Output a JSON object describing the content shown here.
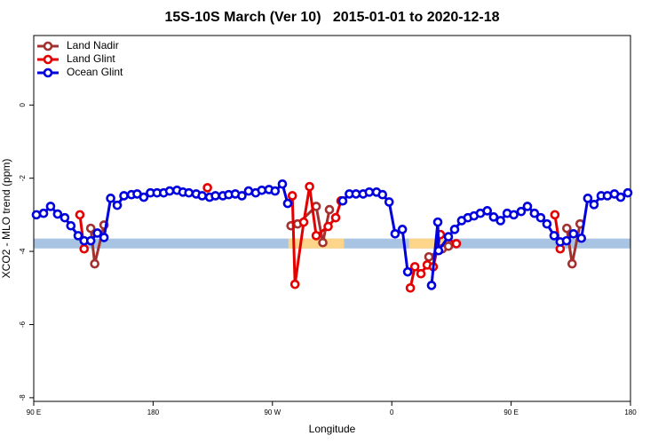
{
  "chart_data": {
    "type": "line",
    "title": "15S-10S March (Ver 10)   2015-01-01 to 2020-12-18",
    "xlabel": "Longitude",
    "ylabel": "XCO2 - MLO trend (ppm)",
    "xlim": [
      90,
      540
    ],
    "ylim": [
      -8.1,
      1.9
    ],
    "xticks": [
      {
        "value": 90,
        "label": "90 E"
      },
      180,
      {
        "value": 270,
        "label": "90 W"
      },
      {
        "value": 360,
        "label": "0"
      },
      {
        "value": 450,
        "label": "90 E"
      },
      {
        "value": 540,
        "label": "180"
      }
    ],
    "yticks": [
      0,
      -2,
      -4,
      -6,
      -8
    ],
    "legend": "top-left",
    "reference_band": {
      "ylim": [
        -3.92,
        -3.65
      ],
      "color": "#a9c3e2"
    },
    "highlight_ranges": {
      "color": "#fdd58a",
      "x": [
        [
          282,
          324
        ],
        [
          373,
          403
        ]
      ]
    },
    "series": [
      {
        "name": "Land Nadir",
        "color": "#a2312f",
        "x": [
          133,
          136,
          143,
          null,
          284,
          289,
          303,
          308,
          313,
          null,
          388,
          398,
          402.7,
          null,
          492,
          496,
          502
        ],
        "values": [
          -3.37,
          -4.34,
          -3.28,
          null,
          -3.3,
          -3.25,
          -2.77,
          -3.76,
          -2.86,
          null,
          -4.15,
          -3.93,
          -3.86,
          null,
          -3.37,
          -4.34,
          -3.25
        ]
      },
      {
        "name": "Land Glint",
        "color": "#e40000",
        "x": [
          124.8,
          128,
          null,
          221,
          null,
          285,
          287,
          293.6,
          298,
          303,
          312,
          317.7,
          321.7,
          null,
          374,
          377.4,
          382,
          386.7,
          391.3,
          396.7,
          408.7,
          null,
          483,
          487
        ],
        "values": [
          -3.0,
          -3.93,
          null,
          -2.26,
          null,
          -2.48,
          -4.9,
          -3.2,
          -2.23,
          -3.57,
          -3.32,
          -3.08,
          -2.62,
          null,
          -5.0,
          -4.42,
          -4.61,
          -4.37,
          -4.42,
          -3.54,
          -3.79,
          null,
          -3.0,
          -3.93
        ]
      },
      {
        "name": "Ocean Glint",
        "color": "#0000dd",
        "x": [
          92,
          97.4,
          102.7,
          108,
          113.4,
          118,
          123.5,
          128,
          133,
          138,
          143,
          148,
          153,
          158,
          163.7,
          168,
          173,
          178,
          183,
          188,
          192.5,
          198,
          202.5,
          207,
          212.5,
          217,
          222.6,
          227,
          232.6,
          237,
          242,
          247,
          252,
          257.4,
          262,
          267.4,
          272,
          277.5,
          281.5,
          null,
          323,
          328,
          333,
          338.4,
          343,
          348.5,
          353,
          358,
          362.5,
          368,
          372,
          null,
          390,
          394.7,
          395.3,
          402.7,
          407.4,
          412.7,
          417.4,
          422,
          426.8,
          432,
          436.8,
          442,
          447,
          452,
          457.6,
          462.3,
          467.6,
          472.3,
          477,
          482.4,
          487,
          491.8,
          497,
          503,
          507.8,
          512.5,
          517.9,
          522.6,
          527.9,
          532.6,
          538
        ],
        "values": [
          -3.0,
          -2.96,
          -2.77,
          -2.98,
          -3.08,
          -3.3,
          -3.57,
          -3.71,
          -3.71,
          -3.5,
          -3.62,
          -2.55,
          -2.74,
          -2.48,
          -2.45,
          -2.43,
          -2.52,
          -2.4,
          -2.4,
          -2.4,
          -2.35,
          -2.33,
          -2.38,
          -2.4,
          -2.43,
          -2.48,
          -2.52,
          -2.48,
          -2.48,
          -2.45,
          -2.43,
          -2.48,
          -2.35,
          -2.4,
          -2.33,
          -2.31,
          -2.35,
          -2.16,
          -2.69,
          null,
          -2.62,
          -2.43,
          -2.43,
          -2.43,
          -2.38,
          -2.38,
          -2.45,
          -2.65,
          -3.52,
          -3.4,
          -4.56,
          null,
          -4.93,
          -3.2,
          -3.98,
          -3.6,
          -3.4,
          -3.16,
          -3.08,
          -3.03,
          -2.96,
          -2.89,
          -3.06,
          -3.16,
          -2.96,
          -3.0,
          -2.91,
          -2.77,
          -2.96,
          -3.08,
          -3.25,
          -3.57,
          -3.74,
          -3.71,
          -3.52,
          -3.64,
          -2.55,
          -2.72,
          -2.48,
          -2.48,
          -2.43,
          -2.52,
          -2.4
        ]
      }
    ]
  }
}
